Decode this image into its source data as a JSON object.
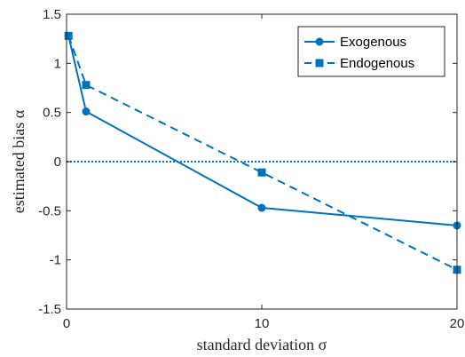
{
  "chart_data": {
    "type": "line",
    "xlabel": "standard deviation σ",
    "ylabel": "estimated bias α",
    "xlim": [
      0,
      20
    ],
    "ylim": [
      -1.5,
      1.5
    ],
    "xticks": [
      0,
      10,
      20
    ],
    "yticks": [
      1.5,
      1,
      0.5,
      0,
      -0.5,
      -1,
      -1.5
    ],
    "x_tick_labels": [
      "0",
      "10",
      "20"
    ],
    "y_tick_labels": [
      "1.5",
      "1",
      "0.5",
      "0",
      "-0.5",
      "-1",
      "-1.5"
    ],
    "legend_position": "top-right",
    "color": "#0072BD",
    "series": [
      {
        "name": "Exogenous",
        "marker": "circle",
        "line": "solid",
        "x": [
          0.1,
          1,
          10,
          20
        ],
        "y": [
          1.28,
          0.51,
          -0.47,
          -0.65
        ]
      },
      {
        "name": "Endogenous",
        "marker": "square",
        "line": "dashed",
        "x": [
          0.1,
          1,
          10,
          20
        ],
        "y": [
          1.28,
          0.78,
          -0.11,
          -1.1
        ]
      }
    ],
    "reference_lines": [
      {
        "y": 0,
        "style": "dotted"
      }
    ]
  }
}
